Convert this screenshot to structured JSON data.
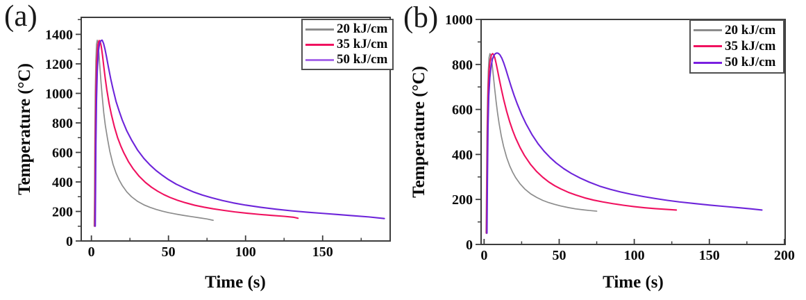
{
  "page": {
    "background": "#ffffff"
  },
  "style_colors": {
    "axis": "#3c3c3c",
    "tick_label": "#0a0a0a",
    "legend_border": "#4f4f4f",
    "series_gray": "#8c8c8c",
    "series_pink": "#f0115f",
    "series_purple": "#6d24da"
  },
  "chart_data": [
    {
      "id": "a",
      "type": "line",
      "panel_label": "(a)",
      "xlabel": "Time (s)",
      "ylabel": "Temperature (°C)",
      "xlim": [
        -6.6,
        193.8
      ],
      "ylim": [
        0,
        1515
      ],
      "xticks": [
        0,
        50,
        100,
        150
      ],
      "xminor_step": 25,
      "yticks": [
        0,
        200,
        400,
        600,
        800,
        1000,
        1200,
        1400
      ],
      "yminor_step": 100,
      "grid": false,
      "legend_position": "top-right",
      "legend_swatch_colors": [
        "#8c8c8c",
        "#f0115f",
        "#a869ea"
      ],
      "series": [
        {
          "name": "20 kJ/cm",
          "color": "#8c8c8c",
          "peak_c": 1360,
          "points": [
            [
              1.8,
              100
            ],
            [
              2,
              300
            ],
            [
              2.2,
              650
            ],
            [
              2.5,
              1000
            ],
            [
              2.9,
              1220
            ],
            [
              3.3,
              1330
            ],
            [
              3.8,
              1360
            ],
            [
              4.3,
              1340
            ],
            [
              4.9,
              1270
            ],
            [
              5.5,
              1180
            ],
            [
              6.2,
              1080
            ],
            [
              7,
              980
            ],
            [
              8,
              870
            ],
            [
              9,
              785
            ],
            [
              10.5,
              690
            ],
            [
              12,
              605
            ],
            [
              14,
              520
            ],
            [
              16,
              460
            ],
            [
              18,
              413
            ],
            [
              20,
              376
            ],
            [
              23,
              332
            ],
            [
              26,
              300
            ],
            [
              30,
              268
            ],
            [
              34,
              245
            ],
            [
              38,
              228
            ],
            [
              42,
              214
            ],
            [
              46,
              202
            ],
            [
              50,
              192
            ],
            [
              55,
              182
            ],
            [
              60,
              173
            ],
            [
              65,
              165
            ],
            [
              70,
              157
            ],
            [
              75,
              149
            ],
            [
              79,
              140
            ]
          ]
        },
        {
          "name": "35 kJ/cm",
          "color": "#f0115f",
          "peak_c": 1360,
          "points": [
            [
              2.2,
              100
            ],
            [
              2.4,
              350
            ],
            [
              2.6,
              700
            ],
            [
              3,
              1020
            ],
            [
              3.5,
              1220
            ],
            [
              4.2,
              1330
            ],
            [
              5,
              1358
            ],
            [
              5.7,
              1352
            ],
            [
              6.4,
              1318
            ],
            [
              7.2,
              1258
            ],
            [
              8,
              1185
            ],
            [
              9,
              1100
            ],
            [
              10,
              1025
            ],
            [
              11.5,
              930
            ],
            [
              13,
              855
            ],
            [
              15,
              770
            ],
            [
              17,
              700
            ],
            [
              19,
              645
            ],
            [
              21,
              598
            ],
            [
              24,
              538
            ],
            [
              27,
              490
            ],
            [
              31,
              438
            ],
            [
              35,
              397
            ],
            [
              39,
              364
            ],
            [
              43,
              337
            ],
            [
              47,
              314
            ],
            [
              51,
              295
            ],
            [
              56,
              275
            ],
            [
              61,
              259
            ],
            [
              67,
              242
            ],
            [
              73,
              229
            ],
            [
              79,
              218
            ],
            [
              86,
              207
            ],
            [
              93,
              197
            ],
            [
              101,
              188
            ],
            [
              109,
              180
            ],
            [
              117,
              173
            ],
            [
              125,
              167
            ],
            [
              131,
              161
            ],
            [
              134,
              154
            ]
          ]
        },
        {
          "name": "50 kJ/cm",
          "color": "#6d24da",
          "peak_c": 1360,
          "points": [
            [
              2.5,
              100
            ],
            [
              2.7,
              350
            ],
            [
              2.9,
              650
            ],
            [
              3.3,
              950
            ],
            [
              3.8,
              1150
            ],
            [
              4.5,
              1280
            ],
            [
              5.3,
              1340
            ],
            [
              6.2,
              1358
            ],
            [
              7,
              1360
            ],
            [
              7.9,
              1338
            ],
            [
              8.8,
              1300
            ],
            [
              9.8,
              1248
            ],
            [
              11,
              1180
            ],
            [
              12.5,
              1100
            ],
            [
              14,
              1030
            ],
            [
              16,
              945
            ],
            [
              18,
              880
            ],
            [
              20,
              820
            ],
            [
              23,
              745
            ],
            [
              26,
              685
            ],
            [
              30,
              615
            ],
            [
              34,
              560
            ],
            [
              38,
              515
            ],
            [
              42,
              477
            ],
            [
              46,
              445
            ],
            [
              50,
              416
            ],
            [
              55,
              385
            ],
            [
              60,
              360
            ],
            [
              66,
              333
            ],
            [
              72,
              311
            ],
            [
              78,
              293
            ],
            [
              85,
              274
            ],
            [
              92,
              258
            ],
            [
              100,
              243
            ],
            [
              110,
              228
            ],
            [
              120,
              215
            ],
            [
              130,
              204
            ],
            [
              140,
              195
            ],
            [
              150,
              187
            ],
            [
              160,
              179
            ],
            [
              170,
              171
            ],
            [
              180,
              163
            ],
            [
              190,
              152
            ]
          ]
        }
      ]
    },
    {
      "id": "b",
      "type": "line",
      "panel_label": "(b)",
      "xlabel": "Time (s)",
      "ylabel": "Temperature (°C)",
      "xlim": [
        -2,
        200.5
      ],
      "ylim": [
        0,
        1000
      ],
      "xticks": [
        0,
        50,
        100,
        150,
        200
      ],
      "xminor_step": 25,
      "yticks": [
        0,
        200,
        400,
        600,
        800,
        1000
      ],
      "yminor_step": 100,
      "grid": false,
      "legend_position": "top-right",
      "legend_swatch_colors": [
        "#8c8c8c",
        "#f0115f",
        "#7a1fe0"
      ],
      "series": [
        {
          "name": "20 kJ/cm",
          "color": "#8c8c8c",
          "peak_c": 848,
          "points": [
            [
              1.3,
              50
            ],
            [
              1.6,
              250
            ],
            [
              1.9,
              480
            ],
            [
              2.3,
              650
            ],
            [
              2.8,
              770
            ],
            [
              3.3,
              830
            ],
            [
              3.9,
              848
            ],
            [
              4.5,
              840
            ],
            [
              5.2,
              810
            ],
            [
              6,
              760
            ],
            [
              7,
              695
            ],
            [
              8,
              635
            ],
            [
              9,
              582
            ],
            [
              10,
              537
            ],
            [
              11.5,
              480
            ],
            [
              13,
              435
            ],
            [
              15,
              387
            ],
            [
              17,
              350
            ],
            [
              19,
              321
            ],
            [
              21,
              297
            ],
            [
              24,
              269
            ],
            [
              27,
              247
            ],
            [
              31,
              225
            ],
            [
              35,
              209
            ],
            [
              39,
              196
            ],
            [
              43,
              186
            ],
            [
              47,
              178
            ],
            [
              51,
              171
            ],
            [
              56,
              164
            ],
            [
              61,
              158
            ],
            [
              66,
              154
            ],
            [
              70,
              151
            ],
            [
              75,
              148
            ]
          ]
        },
        {
          "name": "35 kJ/cm",
          "color": "#f0115f",
          "peak_c": 848,
          "points": [
            [
              1.6,
              50
            ],
            [
              1.9,
              280
            ],
            [
              2.3,
              540
            ],
            [
              2.8,
              700
            ],
            [
              3.4,
              780
            ],
            [
              4.1,
              822
            ],
            [
              4.9,
              843
            ],
            [
              5.7,
              848
            ],
            [
              6.4,
              843
            ],
            [
              7.2,
              828
            ],
            [
              8,
              805
            ],
            [
              9,
              772
            ],
            [
              10,
              738
            ],
            [
              11.5,
              690
            ],
            [
              13,
              645
            ],
            [
              15,
              592
            ],
            [
              17,
              546
            ],
            [
              19,
              507
            ],
            [
              21,
              473
            ],
            [
              24,
              430
            ],
            [
              27,
              394
            ],
            [
              31,
              355
            ],
            [
              35,
              324
            ],
            [
              39,
              299
            ],
            [
              43,
              278
            ],
            [
              47,
              261
            ],
            [
              51,
              247
            ],
            [
              56,
              232
            ],
            [
              61,
              220
            ],
            [
              67,
              207
            ],
            [
              73,
              197
            ],
            [
              79,
              189
            ],
            [
              86,
              181
            ],
            [
              93,
              174
            ],
            [
              100,
              168
            ],
            [
              107,
              163
            ],
            [
              114,
              159
            ],
            [
              121,
              156
            ],
            [
              128,
              153
            ]
          ]
        },
        {
          "name": "50 kJ/cm",
          "color": "#6d24da",
          "peak_c": 851,
          "points": [
            [
              1.9,
              50
            ],
            [
              2.2,
              280
            ],
            [
              2.6,
              520
            ],
            [
              3.1,
              660
            ],
            [
              3.8,
              740
            ],
            [
              4.6,
              790
            ],
            [
              5.5,
              822
            ],
            [
              6.5,
              840
            ],
            [
              7.5,
              848
            ],
            [
              8.5,
              851
            ],
            [
              9.5,
              849
            ],
            [
              10.5,
              843
            ],
            [
              11.8,
              828
            ],
            [
              13,
              808
            ],
            [
              14.5,
              778
            ],
            [
              16,
              745
            ],
            [
              18,
              702
            ],
            [
              20,
              662
            ],
            [
              22,
              626
            ],
            [
              25,
              577
            ],
            [
              28,
              535
            ],
            [
              32,
              487
            ],
            [
              36,
              447
            ],
            [
              40,
              414
            ],
            [
              44,
              386
            ],
            [
              48,
              362
            ],
            [
              53,
              337
            ],
            [
              58,
              316
            ],
            [
              64,
              295
            ],
            [
              70,
              277
            ],
            [
              77,
              259
            ],
            [
              84,
              245
            ],
            [
              91,
              233
            ],
            [
              98,
              223
            ],
            [
              106,
              213
            ],
            [
              114,
              204
            ],
            [
              122,
              196
            ],
            [
              130,
              189
            ],
            [
              140,
              182
            ],
            [
              150,
              175
            ],
            [
              160,
              169
            ],
            [
              170,
              163
            ],
            [
              178,
              158
            ],
            [
              185,
              153
            ]
          ]
        }
      ]
    }
  ]
}
